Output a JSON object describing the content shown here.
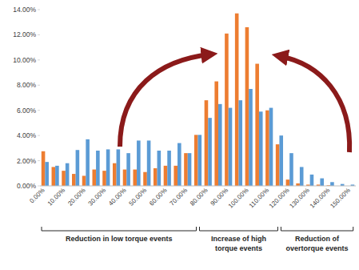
{
  "chart_data": {
    "type": "bar",
    "categories": [
      "0.00%",
      null,
      "10.00%",
      null,
      "20.00%",
      null,
      "30.00%",
      null,
      "40.00%",
      null,
      "50.00%",
      null,
      "60.00%",
      null,
      "70.00%",
      null,
      "80.00%",
      null,
      "90.00%",
      null,
      "100.00%",
      null,
      "110.00%",
      null,
      "120.00%",
      null,
      "130.00%",
      null,
      "140.00%",
      null,
      "150.00%"
    ],
    "series": [
      {
        "color": "#ed7d31",
        "values": [
          2.75,
          1.5,
          1.2,
          0.95,
          0.8,
          1.3,
          1.2,
          1.8,
          1.3,
          1.3,
          1.1,
          1.4,
          1.6,
          1.6,
          2.6,
          4.05,
          6.8,
          8.3,
          12.1,
          13.7,
          12.6,
          9.7,
          6.0,
          3.3,
          0.5,
          0.2,
          0.1,
          0.1,
          0.05,
          0.0,
          0.0
        ]
      },
      {
        "color": "#5b9bd5",
        "values": [
          1.9,
          1.6,
          1.8,
          2.85,
          3.7,
          2.8,
          2.9,
          2.9,
          2.6,
          3.6,
          3.6,
          2.8,
          2.8,
          3.4,
          2.6,
          4.05,
          5.4,
          6.5,
          6.2,
          6.8,
          7.7,
          5.9,
          6.2,
          4.0,
          2.6,
          1.5,
          0.9,
          0.6,
          0.3,
          0.15,
          0.1
        ]
      }
    ],
    "ylim": [
      0,
      14
    ],
    "yticks": [
      {
        "value": 0,
        "label": "0.00%"
      },
      {
        "value": 2,
        "label": "2.00%"
      },
      {
        "value": 4,
        "label": "4.00%"
      },
      {
        "value": 6,
        "label": "6.00%"
      },
      {
        "value": 8,
        "label": "8.00%"
      },
      {
        "value": 10,
        "label": "10.00%"
      },
      {
        "value": 12,
        "label": "12.00%"
      },
      {
        "value": 14,
        "label": "14.00%"
      }
    ],
    "grid": false,
    "annotations": [
      {
        "text": "Reduction in low torque events"
      },
      {
        "text": "Increase of high torque events"
      },
      {
        "text": "Reduction of overtorque events"
      }
    ]
  }
}
